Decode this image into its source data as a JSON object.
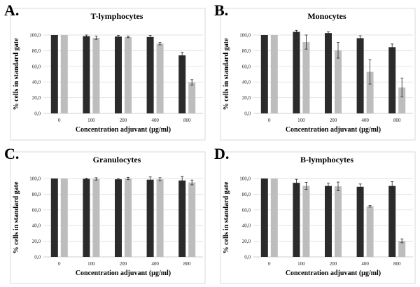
{
  "colors": {
    "series_dark": "#2b2b2b",
    "series_light": "#bdbdbd"
  },
  "chart_data": [
    {
      "type": "bar",
      "panel_letter": "A.",
      "title": "T-lymphocytes",
      "xlabel": "Concentration adjuvant (µg/ml)",
      "ylabel": "% cells in standard gate",
      "categories": [
        "0",
        "100",
        "200",
        "400",
        "800"
      ],
      "ylim": [
        0,
        100
      ],
      "yticks": [
        "0,0",
        "20,0",
        "40,0",
        "60,0",
        "80,0",
        "100,0"
      ],
      "grid": true,
      "series": [
        {
          "values": [
            100,
            98.5,
            98,
            97.5,
            74
          ],
          "errors": [
            0,
            1.5,
            1.5,
            2,
            4
          ]
        },
        {
          "values": [
            100,
            96.5,
            97.5,
            89,
            39.5
          ],
          "errors": [
            0,
            2,
            1,
            1.5,
            3.5
          ]
        }
      ]
    },
    {
      "type": "bar",
      "panel_letter": "B.",
      "title": "Monocytes",
      "xlabel": "Concentration adjuvant (µg/ml)",
      "ylabel": "% cells in standard gate",
      "categories": [
        "0",
        "100",
        "200",
        "400",
        "800"
      ],
      "ylim": [
        0,
        100
      ],
      "yticks": [
        "0,0",
        "20,0",
        "40,0",
        "60,0",
        "80,0",
        "100,0"
      ],
      "grid": true,
      "series": [
        {
          "values": [
            100,
            104,
            102.5,
            96,
            84.5
          ],
          "errors": [
            0,
            2,
            1.5,
            3,
            4
          ]
        },
        {
          "values": [
            100,
            91,
            80.5,
            53,
            33
          ],
          "errors": [
            0,
            9,
            10,
            15.5,
            12
          ]
        }
      ]
    },
    {
      "type": "bar",
      "panel_letter": "C.",
      "title": "Granulocytes",
      "xlabel": "Concentration adjuvant (µg/ml)",
      "ylabel": "% cells in standard gate",
      "categories": [
        "0",
        "100",
        "200",
        "400",
        "800"
      ],
      "ylim": [
        0,
        100
      ],
      "yticks": [
        "0,0",
        "20,0",
        "40,0",
        "60,0",
        "80,0",
        "100,0"
      ],
      "grid": true,
      "series": [
        {
          "values": [
            100,
            99.5,
            99,
            98.5,
            97.5
          ],
          "errors": [
            0,
            1,
            1,
            3.5,
            5
          ]
        },
        {
          "values": [
            100,
            99.5,
            100,
            99,
            95
          ],
          "errors": [
            0,
            1.5,
            1.5,
            2,
            3
          ]
        }
      ]
    },
    {
      "type": "bar",
      "panel_letter": "D.",
      "title": "B-lymphocytes",
      "xlabel": "Concentration adjuvant (µg/ml)",
      "ylabel": "% cells in standard gate",
      "categories": [
        "0",
        "100",
        "200",
        "400",
        "800"
      ],
      "ylim": [
        0,
        100
      ],
      "yticks": [
        "0,0",
        "20,0",
        "40,0",
        "60,0",
        "80,0",
        "100,0"
      ],
      "grid": true,
      "series": [
        {
          "values": [
            100,
            94.5,
            90.5,
            89.5,
            90.5
          ],
          "errors": [
            0,
            4.5,
            3.5,
            3.5,
            5.5
          ]
        },
        {
          "values": [
            100,
            90.5,
            90,
            64.5,
            20.5
          ],
          "errors": [
            0,
            4.5,
            5.5,
            1,
            2.5
          ]
        }
      ]
    }
  ]
}
